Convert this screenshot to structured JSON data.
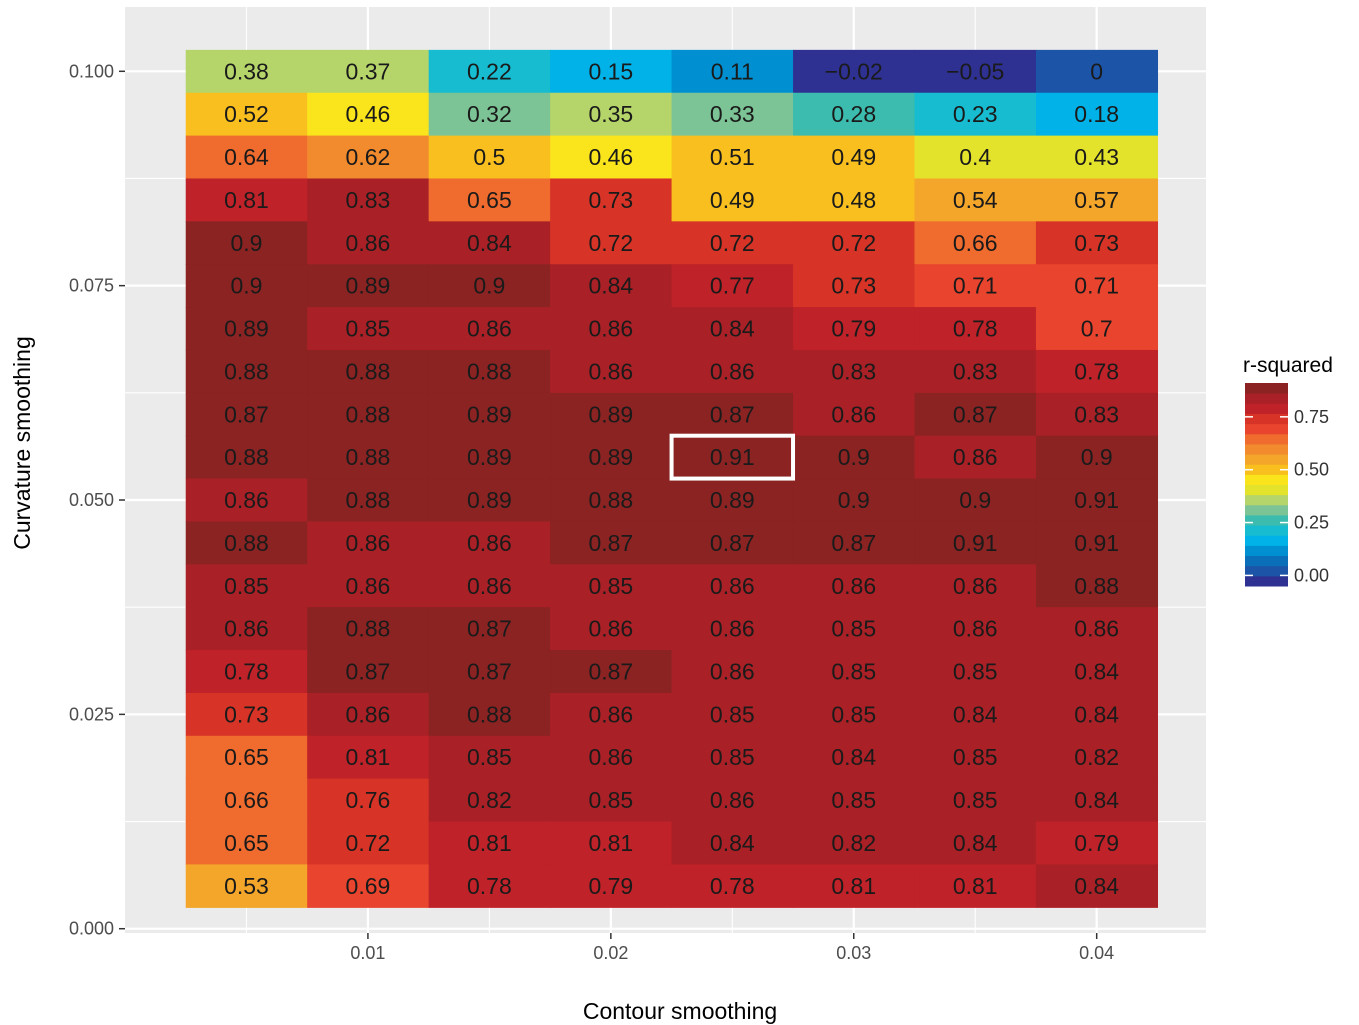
{
  "chart_data": {
    "type": "heatmap",
    "xlabel": "Contour smoothing",
    "ylabel": "Curvature smoothing",
    "x": [
      0.005,
      0.01,
      0.015,
      0.02,
      0.025,
      0.03,
      0.035,
      0.04
    ],
    "y": [
      0.1,
      0.095,
      0.09,
      0.085,
      0.08,
      0.075,
      0.07,
      0.065,
      0.06,
      0.055,
      0.05,
      0.045,
      0.04,
      0.035,
      0.03,
      0.025,
      0.02,
      0.015,
      0.01,
      0.005
    ],
    "xlim": [
      0.0,
      0.0445
    ],
    "ylim": [
      -0.0005,
      0.1075
    ],
    "x_ticks": [
      0.01,
      0.02,
      0.03,
      0.04
    ],
    "x_tick_labels": [
      "0.01",
      "0.02",
      "0.03",
      "0.04"
    ],
    "y_ticks": [
      0.0,
      0.025,
      0.05,
      0.075,
      0.1
    ],
    "y_tick_labels": [
      "0.000",
      "0.025",
      "0.050",
      "0.075",
      "0.100"
    ],
    "values": [
      [
        0.38,
        0.37,
        0.22,
        0.15,
        0.11,
        -0.02,
        -0.05,
        0
      ],
      [
        0.52,
        0.46,
        0.32,
        0.35,
        0.33,
        0.28,
        0.23,
        0.18
      ],
      [
        0.64,
        0.62,
        0.5,
        0.46,
        0.51,
        0.49,
        0.4,
        0.43
      ],
      [
        0.81,
        0.83,
        0.65,
        0.73,
        0.49,
        0.48,
        0.54,
        0.57
      ],
      [
        0.9,
        0.86,
        0.84,
        0.72,
        0.72,
        0.72,
        0.66,
        0.73
      ],
      [
        0.9,
        0.89,
        0.9,
        0.84,
        0.77,
        0.73,
        0.71,
        0.71
      ],
      [
        0.89,
        0.85,
        0.86,
        0.86,
        0.84,
        0.79,
        0.78,
        0.7
      ],
      [
        0.88,
        0.88,
        0.88,
        0.86,
        0.86,
        0.83,
        0.83,
        0.78
      ],
      [
        0.87,
        0.88,
        0.89,
        0.89,
        0.87,
        0.86,
        0.87,
        0.83
      ],
      [
        0.88,
        0.88,
        0.89,
        0.89,
        0.91,
        0.9,
        0.86,
        0.9
      ],
      [
        0.86,
        0.88,
        0.89,
        0.88,
        0.89,
        0.9,
        0.9,
        0.91
      ],
      [
        0.88,
        0.86,
        0.86,
        0.87,
        0.87,
        0.87,
        0.91,
        0.91
      ],
      [
        0.85,
        0.86,
        0.86,
        0.85,
        0.86,
        0.86,
        0.86,
        0.88
      ],
      [
        0.86,
        0.88,
        0.87,
        0.86,
        0.86,
        0.85,
        0.86,
        0.86
      ],
      [
        0.78,
        0.87,
        0.87,
        0.87,
        0.86,
        0.85,
        0.85,
        0.84
      ],
      [
        0.73,
        0.86,
        0.88,
        0.86,
        0.85,
        0.85,
        0.84,
        0.84
      ],
      [
        0.65,
        0.81,
        0.85,
        0.86,
        0.85,
        0.84,
        0.85,
        0.82
      ],
      [
        0.66,
        0.76,
        0.82,
        0.85,
        0.86,
        0.85,
        0.85,
        0.84
      ],
      [
        0.65,
        0.72,
        0.81,
        0.81,
        0.84,
        0.82,
        0.84,
        0.79
      ],
      [
        0.53,
        0.69,
        0.78,
        0.79,
        0.78,
        0.81,
        0.81,
        0.84
      ]
    ],
    "labels": [
      [
        "0.38",
        "0.37",
        "0.22",
        "0.15",
        "0.11",
        "−0.02",
        "−0.05",
        "0"
      ],
      [
        "0.52",
        "0.46",
        "0.32",
        "0.35",
        "0.33",
        "0.28",
        "0.23",
        "0.18"
      ],
      [
        "0.64",
        "0.62",
        "0.5",
        "0.46",
        "0.51",
        "0.49",
        "0.4",
        "0.43"
      ],
      [
        "0.81",
        "0.83",
        "0.65",
        "0.73",
        "0.49",
        "0.48",
        "0.54",
        "0.57"
      ],
      [
        "0.9",
        "0.86",
        "0.84",
        "0.72",
        "0.72",
        "0.72",
        "0.66",
        "0.73"
      ],
      [
        "0.9",
        "0.89",
        "0.9",
        "0.84",
        "0.77",
        "0.73",
        "0.71",
        "0.71"
      ],
      [
        "0.89",
        "0.85",
        "0.86",
        "0.86",
        "0.84",
        "0.79",
        "0.78",
        "0.7"
      ],
      [
        "0.88",
        "0.88",
        "0.88",
        "0.86",
        "0.86",
        "0.83",
        "0.83",
        "0.78"
      ],
      [
        "0.87",
        "0.88",
        "0.89",
        "0.89",
        "0.87",
        "0.86",
        "0.87",
        "0.83"
      ],
      [
        "0.88",
        "0.88",
        "0.89",
        "0.89",
        "0.91",
        "0.9",
        "0.86",
        "0.9"
      ],
      [
        "0.86",
        "0.88",
        "0.89",
        "0.88",
        "0.89",
        "0.9",
        "0.9",
        "0.91"
      ],
      [
        "0.88",
        "0.86",
        "0.86",
        "0.87",
        "0.87",
        "0.87",
        "0.91",
        "0.91"
      ],
      [
        "0.85",
        "0.86",
        "0.86",
        "0.85",
        "0.86",
        "0.86",
        "0.86",
        "0.88"
      ],
      [
        "0.86",
        "0.88",
        "0.87",
        "0.86",
        "0.86",
        "0.85",
        "0.86",
        "0.86"
      ],
      [
        "0.78",
        "0.87",
        "0.87",
        "0.87",
        "0.86",
        "0.85",
        "0.85",
        "0.84"
      ],
      [
        "0.73",
        "0.86",
        "0.88",
        "0.86",
        "0.85",
        "0.85",
        "0.84",
        "0.84"
      ],
      [
        "0.65",
        "0.81",
        "0.85",
        "0.86",
        "0.85",
        "0.84",
        "0.85",
        "0.82"
      ],
      [
        "0.66",
        "0.76",
        "0.82",
        "0.85",
        "0.86",
        "0.85",
        "0.85",
        "0.84"
      ],
      [
        "0.65",
        "0.72",
        "0.81",
        "0.81",
        "0.84",
        "0.82",
        "0.84",
        "0.79"
      ],
      [
        "0.53",
        "0.69",
        "0.78",
        "0.79",
        "0.78",
        "0.81",
        "0.81",
        "0.84"
      ]
    ],
    "highlight": {
      "x": 0.025,
      "y": 0.055,
      "color": "#ffffff"
    },
    "legend": {
      "title": "r-squared",
      "position": "right",
      "breaks": [
        0.0,
        0.25,
        0.5,
        0.75
      ],
      "break_labels": [
        "0.00",
        "0.25",
        "0.50",
        "0.75"
      ],
      "range": [
        -0.05,
        0.91
      ]
    },
    "grid": true,
    "colors": {
      "panel_background": "#ebebeb",
      "gridline": "#ffffff",
      "palette": [
        "#2e3192",
        "#1c54a8",
        "#0a6fb8",
        "#008fd0",
        "#00b2e8",
        "#17bcd0",
        "#3cbcae",
        "#7cc495",
        "#b5d56a",
        "#e4e32c",
        "#fae41c",
        "#f8bf1e",
        "#f4a62a",
        "#f28a2e",
        "#ef6b2e",
        "#e9442e",
        "#d73427",
        "#bf2228",
        "#a92126",
        "#8b2323"
      ]
    }
  }
}
